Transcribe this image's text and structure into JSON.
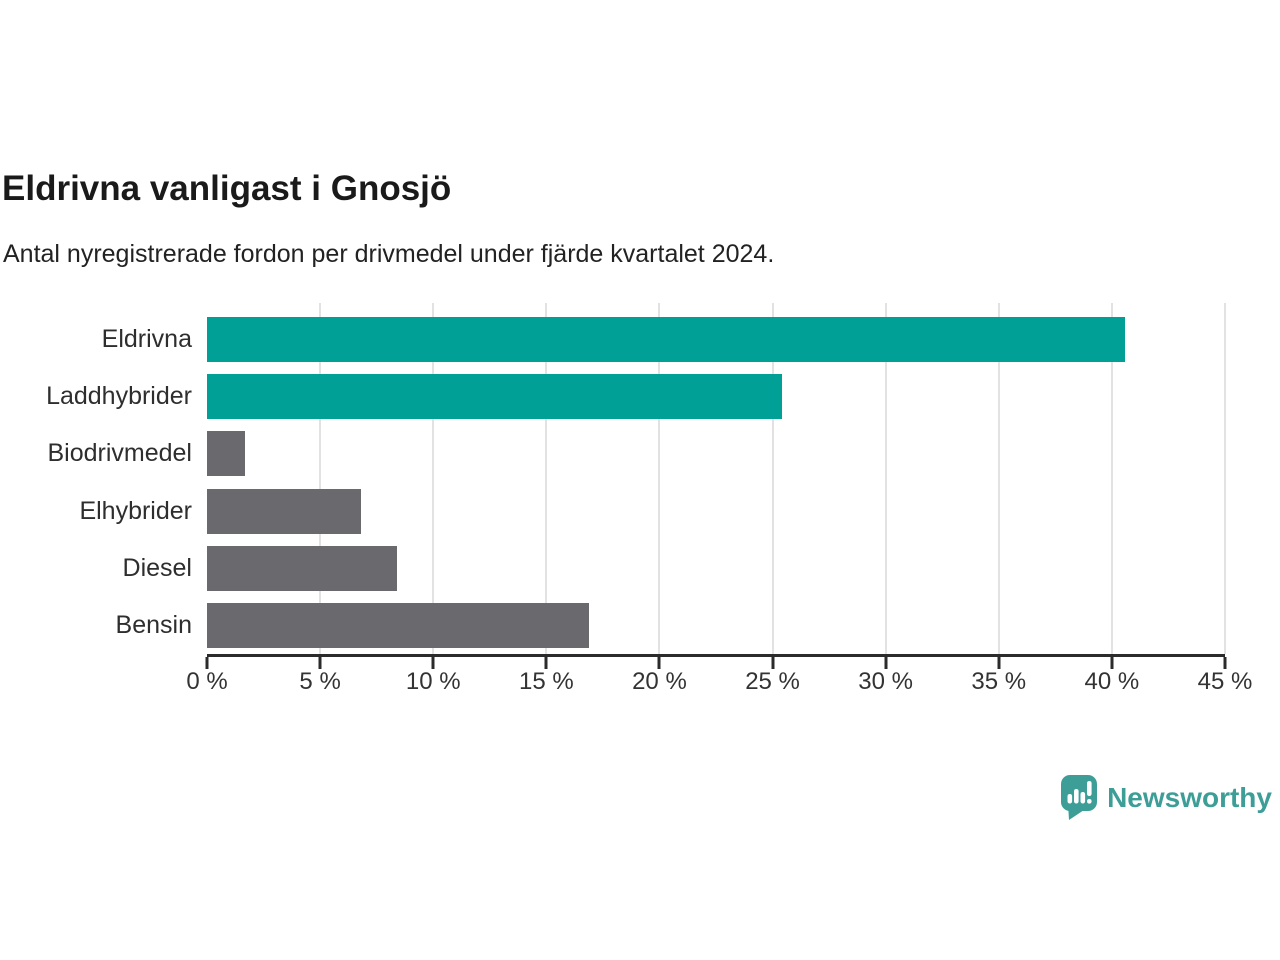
{
  "header": {
    "title": "Eldrivna vanligast i Gnosjö",
    "subtitle": "Antal nyregistrerade fordon per drivmedel under fjärde kvartalet 2024."
  },
  "chart_data": {
    "type": "bar",
    "orientation": "horizontal",
    "title": "Eldrivna vanligast i Gnosjö",
    "subtitle": "Antal nyregistrerade fordon per drivmedel under fjärde kvartalet 2024.",
    "categories": [
      "Eldrivna",
      "Laddhybrider",
      "Biodrivmedel",
      "Elhybrider",
      "Diesel",
      "Bensin"
    ],
    "values": [
      40.6,
      25.4,
      1.7,
      6.8,
      8.4,
      16.9
    ],
    "bar_colors": [
      "#00a096",
      "#00a096",
      "#6a6a6e",
      "#6a6a6e",
      "#6a6a6e",
      "#6a6a6e"
    ],
    "xlabel": "",
    "ylabel": "",
    "xlim": [
      0,
      45
    ],
    "x_ticks": [
      0,
      5,
      10,
      15,
      20,
      25,
      30,
      35,
      40,
      45
    ],
    "x_tick_labels": [
      "0 %",
      "5 %",
      "10 %",
      "15 %",
      "20 %",
      "25 %",
      "30 %",
      "35 %",
      "40 %",
      "45 %"
    ],
    "grid": "vertical",
    "legend": "none"
  },
  "branding": {
    "name": "Newsworthy",
    "color": "#3d9e98",
    "icon": "newsworthy-speech-bubble-bar-chart-icon"
  },
  "colors": {
    "accent": "#00a096",
    "muted_bar": "#6a6a6e",
    "axis": "#2b2b2b",
    "grid": "#e2e2e2",
    "title_text": "#1a1a1a",
    "label_text": "#2e2e2e",
    "background": "#ffffff"
  }
}
